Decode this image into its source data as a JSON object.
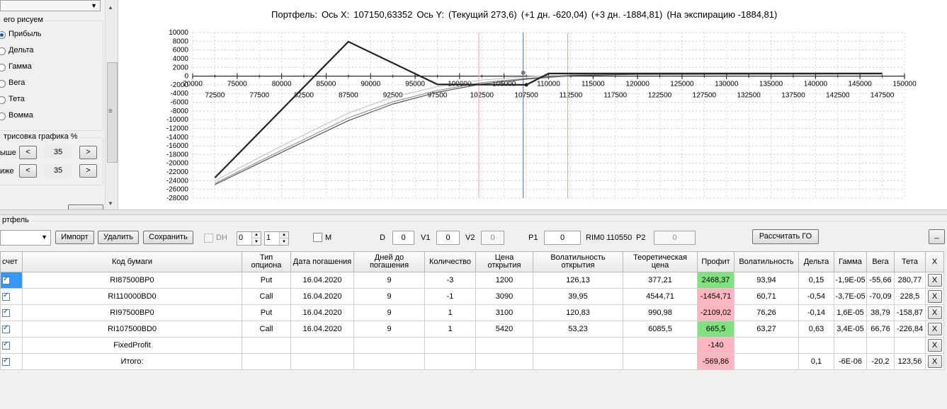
{
  "left": {
    "group_title": "его рисуем",
    "radios": [
      {
        "label": "Прибыль",
        "selected": true
      },
      {
        "label": "Дельта",
        "selected": false
      },
      {
        "label": "Гамма",
        "selected": false
      },
      {
        "label": "Вега",
        "selected": false
      },
      {
        "label": "Тета",
        "selected": false
      },
      {
        "label": "Вомма",
        "selected": false
      }
    ],
    "draw_group_title": "трисовка графика %",
    "above_label": "ыше",
    "above_value": "35",
    "below_label": "иже",
    "below_value": "35",
    "dec_label": "<",
    "inc_label": ">"
  },
  "chart": {
    "title_parts": [
      "Портфель:",
      "Ось X:",
      "107150,63352",
      "Ось Y:",
      "(Текущий 273,6)",
      "(+1 дн. -620,04)",
      "(+3 дн. -1884,81)",
      "(На экспирацию -1884,81)"
    ]
  },
  "chart_data": {
    "type": "line",
    "ylim": [
      -28000,
      10000
    ],
    "xlim": [
      70000,
      150000
    ],
    "y_ticks": [
      "10000",
      "8000",
      "6000",
      "4000",
      "2000",
      "0",
      "-2000",
      "-4000",
      "-6000",
      "-8000",
      "-10000",
      "-12000",
      "-14000",
      "-16000",
      "-18000",
      "-20000",
      "-22000",
      "-24000",
      "-26000",
      "-28000"
    ],
    "x_ticks_row1": [
      "70000",
      "75000",
      "80000",
      "85000",
      "90000",
      "95000",
      "100000",
      "105000",
      "110000",
      "115000",
      "120000",
      "125000",
      "130000",
      "135000",
      "140000",
      "145000",
      "150000"
    ],
    "x_ticks_row2": [
      "72500",
      "77500",
      "82500",
      "87500",
      "92500",
      "97500",
      "102500",
      "107500",
      "112500",
      "117500",
      "122500",
      "127500",
      "132500",
      "137500",
      "142500",
      "147500"
    ],
    "vlines": [
      {
        "x": 102150,
        "color": "#ff9aa8"
      },
      {
        "x": 107150,
        "color": "#4a6fa5"
      },
      {
        "x": 112150,
        "color": "#ff9aa8"
      }
    ],
    "series": [
      {
        "color": "#222222",
        "width": 2.2,
        "x": [
          72500,
          87500,
          97500,
          107500,
          110000,
          147500
        ],
        "y": [
          -23300,
          7900,
          -1900,
          -2000,
          600,
          600
        ]
      },
      {
        "color": "#bbbbbb",
        "width": 1,
        "x": [
          72500,
          80000,
          87500,
          92500,
          97500,
          102500,
          107500,
          112500,
          120000,
          147500
        ],
        "y": [
          -24000,
          -16000,
          -8500,
          -4800,
          -2400,
          -900,
          -100,
          300,
          500,
          500
        ]
      },
      {
        "color": "#888888",
        "width": 1,
        "x": [
          72500,
          80000,
          87500,
          92500,
          97500,
          102500,
          107500,
          112500,
          120000,
          147500
        ],
        "y": [
          -24600,
          -17000,
          -9600,
          -5900,
          -3300,
          -1500,
          -500,
          200,
          450,
          500
        ]
      },
      {
        "color": "#555555",
        "width": 1.2,
        "x": [
          72500,
          80000,
          87500,
          92500,
          97500,
          102500,
          107500,
          112500,
          120000,
          147500
        ],
        "y": [
          -24900,
          -17500,
          -10200,
          -6400,
          -3700,
          -1800,
          -700,
          100,
          400,
          500
        ]
      }
    ],
    "markers": [
      {
        "x": 107150,
        "y": 273.6
      }
    ]
  },
  "portfolio": {
    "label": "ртфель",
    "buttons": {
      "import": "Импорт",
      "delete": "Удалить",
      "save": "Сохранить",
      "calc_go": "Рассчитать ГО",
      "min": "_"
    },
    "dh_label": "DH",
    "spin1": "0",
    "spin2": "1",
    "m_label": "M",
    "d_label": "D",
    "d_value": "0",
    "v1_label": "V1",
    "v1_value": "0",
    "v2_label": "V2",
    "v2_value": "0",
    "p1_label": "P1",
    "p1_value": "0",
    "rim_label": "RIM0 110550",
    "p2_label": "P2",
    "p2_value": "0"
  },
  "table": {
    "headers": [
      "счет",
      "Код бумаги",
      "Тип опциона",
      "Дата погашения",
      "Дней до погашения",
      "Количество",
      "Цена открытия",
      "Волатильность открытия",
      "Теоретическая цена",
      "Профит",
      "Волатильность",
      "Дельта",
      "Гамма",
      "Вега",
      "Тета",
      "X"
    ],
    "rows": [
      {
        "code": "RI87500BP0",
        "type": "Put",
        "date": "16.04.2020",
        "days": "9",
        "qty": "-3",
        "open_price": "1200",
        "open_vol": "126,13",
        "theo": "377,21",
        "profit": "2468,37",
        "profit_color": "green",
        "vol": "93,94",
        "delta": "0,15",
        "gamma": "-1,9E-05",
        "vega": "-55,66",
        "theta": "280,77",
        "x": "X"
      },
      {
        "code": "RI110000BD0",
        "type": "Call",
        "date": "16.04.2020",
        "days": "9",
        "qty": "-1",
        "open_price": "3090",
        "open_vol": "39,95",
        "theo": "4544,71",
        "profit": "-1454,71",
        "profit_color": "red",
        "vol": "60,71",
        "delta": "-0,54",
        "gamma": "-3,7E-05",
        "vega": "-70,09",
        "theta": "228,5",
        "x": "X"
      },
      {
        "code": "RI97500BP0",
        "type": "Put",
        "date": "16.04.2020",
        "days": "9",
        "qty": "1",
        "open_price": "3100",
        "open_vol": "120,83",
        "theo": "990,98",
        "profit": "-2109,02",
        "profit_color": "red",
        "vol": "76,26",
        "delta": "-0,14",
        "gamma": "1,6E-05",
        "vega": "38,79",
        "theta": "-158,87",
        "x": "X"
      },
      {
        "code": "RI107500BD0",
        "type": "Call",
        "date": "16.04.2020",
        "days": "9",
        "qty": "1",
        "open_price": "5420",
        "open_vol": "53,23",
        "theo": "6085,5",
        "profit": "665,5",
        "profit_color": "green",
        "vol": "63,27",
        "delta": "0,63",
        "gamma": "3,4E-05",
        "vega": "66,76",
        "theta": "-226,84",
        "x": "X"
      },
      {
        "code": "FixedProfit",
        "type": "",
        "date": "",
        "days": "",
        "qty": "",
        "open_price": "",
        "open_vol": "",
        "theo": "",
        "profit": "-140",
        "profit_color": "red",
        "vol": "",
        "delta": "",
        "gamma": "",
        "vega": "",
        "theta": "",
        "x": "X"
      },
      {
        "code": "Итого:",
        "type": "",
        "date": "",
        "days": "",
        "qty": "",
        "open_price": "",
        "open_vol": "",
        "theo": "",
        "profit": "-569,86",
        "profit_color": "red",
        "vol": "",
        "delta": "0,1",
        "gamma": "-6E-06",
        "vega": "-20,2",
        "theta": "123,56",
        "x": "X"
      }
    ]
  }
}
